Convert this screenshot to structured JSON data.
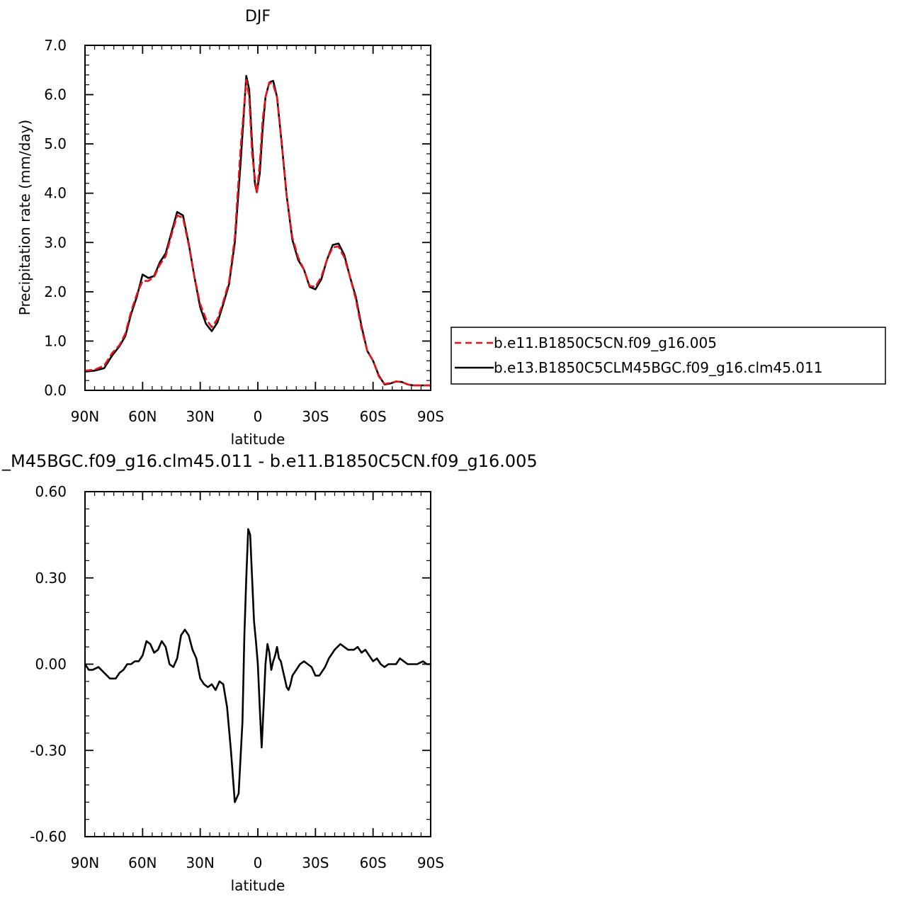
{
  "chart_data": [
    {
      "type": "line",
      "title": "DJF",
      "xlabel": "latitude",
      "ylabel": "Precipitation rate (mm/day)",
      "xlim": [
        90,
        -90
      ],
      "ylim": [
        0,
        7
      ],
      "x_ticks": [
        90,
        60,
        30,
        0,
        -30,
        -60,
        -90
      ],
      "x_tick_labels": [
        "90N",
        "60N",
        "30N",
        "0",
        "30S",
        "60S",
        "90S"
      ],
      "y_ticks": [
        0,
        1,
        2,
        3,
        4,
        5,
        6,
        7
      ],
      "y_tick_labels": [
        "0.0",
        "1.0",
        "2.0",
        "3.0",
        "4.0",
        "5.0",
        "6.0",
        "7.0"
      ],
      "grid": false,
      "legend_position": "right, outside plot",
      "series": [
        {
          "name": "b.e11.B1850C5CN.f09_g16.005",
          "color": "#e8141c",
          "dash": "dashed",
          "x": [
            90,
            85,
            80,
            76,
            72,
            69,
            66,
            63,
            60,
            57,
            54,
            51,
            48,
            45,
            42,
            39,
            36,
            33,
            30,
            27,
            24,
            21,
            18,
            15,
            12,
            9,
            6,
            4.5,
            3,
            1.5,
            0.5,
            -1,
            -2.5,
            -4,
            -6,
            -8,
            -10,
            -12.5,
            -15,
            -18,
            -21,
            -24,
            -27,
            -30,
            -33,
            -36,
            -39,
            -42,
            -45,
            -48,
            -51,
            -54,
            -57,
            -60,
            -63,
            -66,
            -69,
            -72,
            -75,
            -78,
            -81,
            -84,
            -87,
            -90
          ],
          "y": [
            0.4,
            0.42,
            0.5,
            0.75,
            0.92,
            1.15,
            1.6,
            1.95,
            2.22,
            2.22,
            2.3,
            2.55,
            2.72,
            3.15,
            3.55,
            3.5,
            2.95,
            2.3,
            1.75,
            1.45,
            1.28,
            1.45,
            1.8,
            2.2,
            3.1,
            4.9,
            6.3,
            5.95,
            4.8,
            4.3,
            4.0,
            4.6,
            5.5,
            5.95,
            6.25,
            6.2,
            5.95,
            5.0,
            3.95,
            3.1,
            2.7,
            2.45,
            2.12,
            2.1,
            2.3,
            2.65,
            2.9,
            2.92,
            2.7,
            2.3,
            1.85,
            1.25,
            0.8,
            0.6,
            0.28,
            0.13,
            0.15,
            0.18,
            0.17,
            0.12,
            0.1,
            0.1,
            0.1,
            0.1
          ]
        },
        {
          "name": "b.e13.B1850C5CLM45BGC.f09_g16.clm45.011",
          "color": "#000000",
          "dash": "solid",
          "x": [
            90,
            85,
            80,
            76,
            72,
            69,
            66,
            63,
            60,
            57,
            54,
            51,
            48,
            45,
            42,
            39,
            36,
            33,
            30,
            27,
            24,
            21,
            18,
            15,
            12,
            9,
            6,
            4.5,
            3,
            1.5,
            0.5,
            -1,
            -2.5,
            -4,
            -6,
            -8,
            -10,
            -12.5,
            -15,
            -18,
            -21,
            -24,
            -27,
            -30,
            -33,
            -36,
            -39,
            -42,
            -45,
            -48,
            -51,
            -54,
            -57,
            -60,
            -63,
            -66,
            -69,
            -72,
            -75,
            -78,
            -81,
            -84,
            -87,
            -90
          ],
          "y": [
            0.38,
            0.4,
            0.45,
            0.7,
            0.9,
            1.1,
            1.55,
            1.9,
            2.35,
            2.28,
            2.32,
            2.6,
            2.78,
            3.2,
            3.62,
            3.55,
            2.98,
            2.3,
            1.68,
            1.35,
            1.2,
            1.38,
            1.75,
            2.15,
            3.0,
            4.6,
            6.38,
            6.1,
            5.0,
            4.2,
            4.02,
            4.4,
            5.3,
            5.95,
            6.25,
            6.28,
            5.95,
            4.98,
            3.95,
            3.05,
            2.65,
            2.45,
            2.1,
            2.05,
            2.25,
            2.65,
            2.95,
            2.98,
            2.75,
            2.3,
            1.9,
            1.3,
            0.8,
            0.6,
            0.3,
            0.12,
            0.14,
            0.18,
            0.17,
            0.12,
            0.1,
            0.1,
            0.1,
            0.1
          ]
        }
      ]
    },
    {
      "type": "line",
      "title": "_M45BGC.f09_g16.clm45.011 - b.e11.B1850C5CN.f09_g16.005",
      "xlabel": "latitude",
      "ylabel": "",
      "xlim": [
        90,
        -90
      ],
      "ylim": [
        -0.6,
        0.6
      ],
      "x_ticks": [
        90,
        60,
        30,
        0,
        -30,
        -60,
        -90
      ],
      "x_tick_labels": [
        "90N",
        "60N",
        "30N",
        "0",
        "30S",
        "60S",
        "90S"
      ],
      "y_ticks": [
        -0.6,
        -0.3,
        0,
        0.3,
        0.6
      ],
      "y_tick_labels": [
        "-0.60",
        "-0.30",
        "0.00",
        "0.30",
        "0.60"
      ],
      "grid": false,
      "series": [
        {
          "color": "#000000",
          "dash": "solid",
          "x": [
            90,
            88,
            86,
            83,
            80,
            77,
            74,
            72,
            70,
            68,
            66,
            64,
            62,
            60,
            58,
            56,
            54,
            52,
            50,
            48,
            46,
            44,
            42,
            40,
            38,
            36,
            34,
            32,
            30,
            28,
            26,
            24,
            22,
            20,
            18,
            16,
            14,
            12,
            10,
            8,
            7,
            6,
            5,
            4,
            3,
            2,
            1,
            0,
            -1,
            -2,
            -3,
            -4,
            -5,
            -6,
            -7,
            -8,
            -9,
            -10,
            -11,
            -12,
            -13,
            -14,
            -15,
            -16,
            -17,
            -18,
            -20,
            -22,
            -24,
            -26,
            -28,
            -30,
            -32,
            -33,
            -35,
            -37,
            -40,
            -43,
            -45,
            -47,
            -50,
            -52,
            -54,
            -56,
            -58,
            -60,
            -62,
            -64,
            -66,
            -68,
            -70,
            -72,
            -74,
            -76,
            -78,
            -80,
            -83,
            -86,
            -88,
            -90
          ],
          "y": [
            0.0,
            -0.02,
            -0.02,
            -0.01,
            -0.03,
            -0.05,
            -0.05,
            -0.03,
            -0.02,
            0.0,
            0.0,
            0.01,
            0.01,
            0.03,
            0.08,
            0.07,
            0.04,
            0.05,
            0.08,
            0.06,
            0.0,
            -0.01,
            0.02,
            0.1,
            0.12,
            0.1,
            0.05,
            0.02,
            -0.05,
            -0.07,
            -0.08,
            -0.07,
            -0.09,
            -0.06,
            -0.07,
            -0.15,
            -0.3,
            -0.48,
            -0.45,
            -0.2,
            0.1,
            0.3,
            0.47,
            0.45,
            0.3,
            0.15,
            0.08,
            0.0,
            -0.15,
            -0.29,
            -0.15,
            0.0,
            0.07,
            0.04,
            -0.02,
            0.01,
            0.03,
            0.06,
            0.02,
            0.01,
            -0.02,
            -0.05,
            -0.08,
            -0.09,
            -0.07,
            -0.04,
            -0.02,
            0.0,
            0.01,
            0.0,
            -0.01,
            -0.04,
            -0.04,
            -0.03,
            -0.01,
            0.02,
            0.05,
            0.07,
            0.06,
            0.05,
            0.05,
            0.06,
            0.04,
            0.05,
            0.03,
            0.01,
            0.02,
            0.0,
            -0.01,
            0.0,
            0.0,
            0.0,
            0.02,
            0.01,
            0.0,
            0.0,
            0.0,
            0.01,
            0.0,
            0.0
          ]
        }
      ]
    }
  ]
}
